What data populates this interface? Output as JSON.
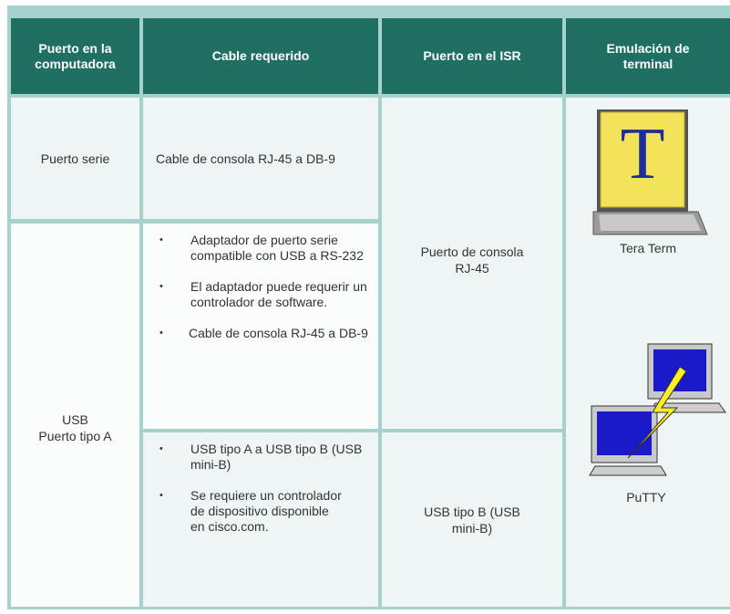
{
  "table": {
    "header": [
      "Puerto en la computadora",
      "Cable requerido",
      "Puerto en el ISR",
      "Emulación de terminal"
    ],
    "serial_port": {
      "label": "Puerto serie",
      "cable": "Cable de consola RJ-45 a DB-9"
    },
    "usb_port": {
      "label": [
        "USB",
        "Puerto tipo A"
      ],
      "cable_adapter": [
        "Adaptador de puerto serie compatible con USB a RS-232",
        "El adaptador puede requerir un controlador de software.",
        "Cable de consola RJ-45 a DB-9"
      ],
      "cable_mini": [
        "USB tipo A a USB tipo B (USB mini-B)",
        "Se requiere un controlador de dispositivo disponible en cisco.com."
      ]
    },
    "isr": {
      "console": "Puerto de consola RJ-45",
      "usb": "USB tipo B (USB mini-B)"
    },
    "terminal": {
      "tera_term": "Tera Term",
      "putty": "PuTTY"
    }
  }
}
